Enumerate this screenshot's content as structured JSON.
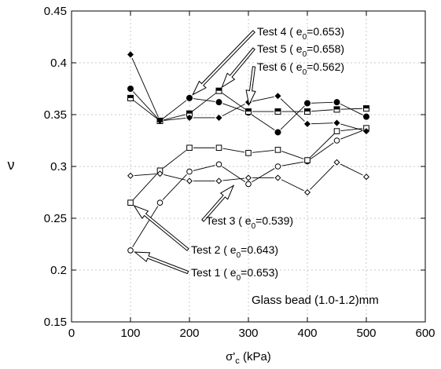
{
  "chart_data": {
    "type": "scatter",
    "title": "",
    "xlabel_main": "σ'",
    "xlabel_sub": "c",
    "xlabel_unit": " (kPa)",
    "ylabel": "ν",
    "xlim": [
      0,
      600
    ],
    "ylim": [
      0.15,
      0.45
    ],
    "xticks": [
      0,
      100,
      200,
      300,
      400,
      500,
      600
    ],
    "yticks": [
      0.15,
      0.2,
      0.25,
      0.3,
      0.35,
      0.4,
      0.45
    ],
    "xtick_labels": [
      "0",
      "100",
      "200",
      "300",
      "400",
      "500",
      "600"
    ],
    "ytick_labels": [
      "0.15",
      "0.2",
      "0.25",
      "0.3",
      "0.35",
      "0.4",
      "0.45"
    ],
    "grid": true,
    "annotation_text": "Glass bead  (1.0-1.2)mm",
    "series": [
      {
        "name": "Test 1",
        "marker": "circle-open",
        "x": [
          100,
          150,
          200,
          250,
          300,
          350,
          400,
          450,
          500
        ],
        "y": [
          0.219,
          0.265,
          0.295,
          0.302,
          0.283,
          0.3,
          0.305,
          0.325,
          0.336
        ],
        "label": {
          "prefix": "Test 1 ( e",
          "sub": "0",
          "value": "=0.653)"
        }
      },
      {
        "name": "Test 2",
        "marker": "square-open",
        "x": [
          100,
          150,
          200,
          250,
          300,
          350,
          400,
          450,
          500
        ],
        "y": [
          0.265,
          0.296,
          0.318,
          0.318,
          0.313,
          0.316,
          0.306,
          0.334,
          0.337
        ],
        "label": {
          "prefix": "Test 2 ( e",
          "sub": "0",
          "value": "=0.643)"
        }
      },
      {
        "name": "Test 3",
        "marker": "diamond-open",
        "x": [
          100,
          150,
          200,
          250,
          300,
          350,
          400,
          450,
          500
        ],
        "y": [
          0.291,
          0.293,
          0.286,
          0.286,
          0.289,
          0.289,
          0.275,
          0.304,
          0.29
        ],
        "label": {
          "prefix": "Test 3 ( e",
          "sub": "0",
          "value": "=0.539)"
        }
      },
      {
        "name": "Test 4",
        "marker": "circle-filled",
        "x": [
          100,
          150,
          200,
          250,
          300,
          350,
          400,
          450,
          500
        ],
        "y": [
          0.375,
          0.344,
          0.366,
          0.362,
          0.352,
          0.333,
          0.361,
          0.362,
          0.348
        ],
        "label": {
          "prefix": "Test 4 ( e",
          "sub": "0",
          "value": "=0.653)"
        }
      },
      {
        "name": "Test 5",
        "marker": "square-halffilled",
        "x": [
          100,
          150,
          200,
          250,
          300,
          350,
          400,
          450,
          500
        ],
        "y": [
          0.366,
          0.344,
          0.351,
          0.373,
          0.353,
          0.353,
          0.353,
          0.355,
          0.356
        ],
        "label": {
          "prefix": "Test 5 ( e",
          "sub": "0",
          "value": "=0.658)"
        }
      },
      {
        "name": "Test 6",
        "marker": "diamond-filled",
        "x": [
          100,
          150,
          200,
          250,
          300,
          350,
          400,
          450,
          500
        ],
        "y": [
          0.408,
          0.344,
          0.347,
          0.347,
          0.362,
          0.368,
          0.341,
          0.342,
          0.334
        ],
        "label": {
          "prefix": "Test 6 ( e",
          "sub": "0",
          "value": "=0.562)"
        }
      }
    ]
  }
}
